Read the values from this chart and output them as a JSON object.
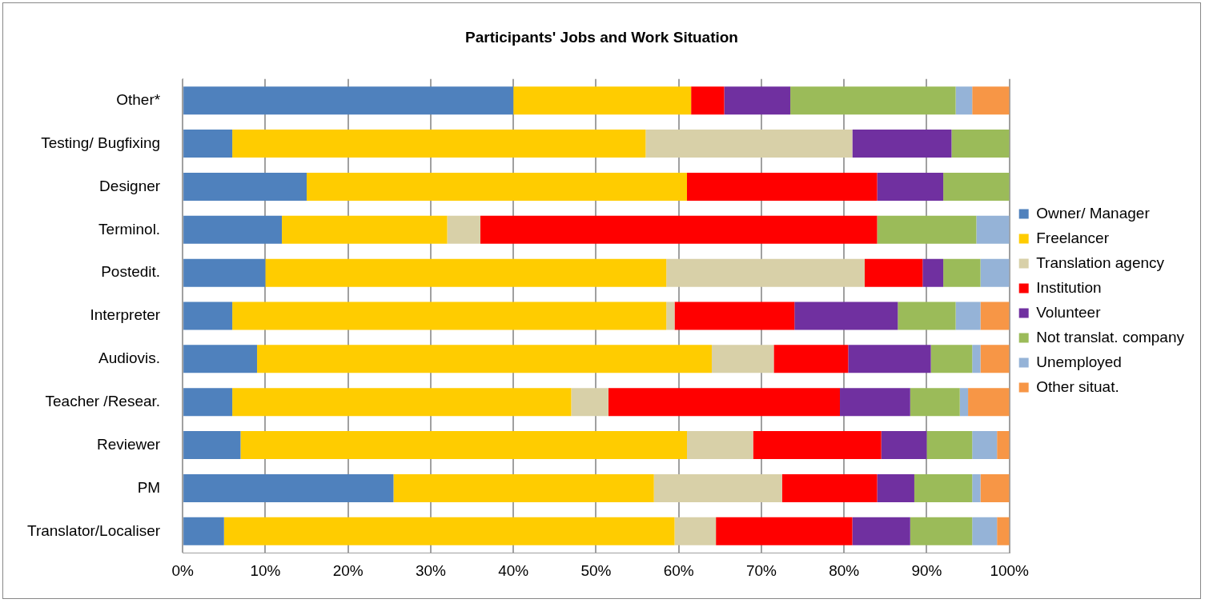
{
  "chart_data": {
    "type": "bar",
    "title": "Participants' Jobs and Work Situation",
    "orientation": "horizontal",
    "stacked": true,
    "categories": [
      "Other*",
      "Testing/ Bugfixing",
      "Designer",
      "Terminol.",
      "Postedit.",
      "Interpreter",
      "Audiovis.",
      "Teacher /Resear.",
      "Reviewer",
      "PM",
      "Translator/Localiser"
    ],
    "series": [
      {
        "name": "Owner/ Manager",
        "color": "#4f81bd",
        "values": [
          40,
          6,
          15,
          12,
          10,
          6,
          9,
          6,
          7,
          25.5,
          5
        ]
      },
      {
        "name": "Freelancer",
        "color": "#ffcc00",
        "values": [
          21.5,
          50,
          46,
          20,
          48.5,
          52.5,
          55,
          41,
          54,
          31.5,
          54.5
        ]
      },
      {
        "name": "Translation agency",
        "color": "#d8d0a8",
        "values": [
          0,
          25,
          0,
          4,
          24,
          1,
          7.5,
          4.5,
          8,
          15.5,
          5
        ]
      },
      {
        "name": "Institution",
        "color": "#ff0000",
        "values": [
          4,
          0,
          23,
          48,
          7,
          14.5,
          9,
          28,
          15.5,
          11.5,
          16.5
        ]
      },
      {
        "name": "Volunteer",
        "color": "#7030a0",
        "values": [
          8,
          12,
          8,
          0,
          2.5,
          12.5,
          10,
          8.5,
          5.5,
          4.5,
          7
        ]
      },
      {
        "name": "Not translat. company",
        "color": "#9bbb59",
        "values": [
          20,
          7,
          8,
          12,
          4.5,
          7,
          5,
          6,
          5.5,
          7,
          7.5
        ]
      },
      {
        "name": "Unemployed",
        "color": "#95b3d7",
        "values": [
          2,
          0,
          0,
          4,
          3.5,
          3,
          1,
          1,
          3,
          1,
          3
        ]
      },
      {
        "name": "Other situat.",
        "color": "#f79646",
        "values": [
          4.5,
          0,
          0,
          0,
          0,
          3.5,
          3.5,
          5,
          1.5,
          3.5,
          1.5
        ]
      }
    ],
    "xlim": [
      0,
      100
    ],
    "xticks": [
      {
        "value": 0,
        "label": "0%"
      },
      {
        "value": 10,
        "label": "10%"
      },
      {
        "value": 20,
        "label": "20%"
      },
      {
        "value": 30,
        "label": "30%"
      },
      {
        "value": 40,
        "label": "40%"
      },
      {
        "value": 50,
        "label": "50%"
      },
      {
        "value": 60,
        "label": "60%"
      },
      {
        "value": 70,
        "label": "70%"
      },
      {
        "value": 80,
        "label": "80%"
      },
      {
        "value": 90,
        "label": "90%"
      },
      {
        "value": 100,
        "label": "100%"
      }
    ],
    "grid": "x",
    "legend": "right"
  }
}
